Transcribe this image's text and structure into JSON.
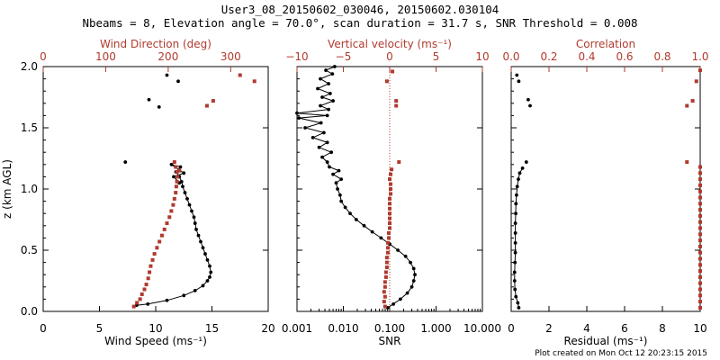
{
  "title_line1": "User3_08_20150602_030046, 20150602.030104",
  "title_line2": "Nbeams = 8, Elevation angle = 70.0°, scan duration = 31.7 s, SNR Threshold = 0.008",
  "footer": "Plot created on Mon Oct 12 20:23:15 2015",
  "colors": {
    "primary": "#000000",
    "secondary": "#b03a2e"
  },
  "chart_data": [
    {
      "type": "scatter",
      "panel": "wind",
      "ylabel": "z (km AGL)",
      "ylim": [
        0,
        2
      ],
      "y_ticks": [
        "0.0",
        "0.5",
        "1.0",
        "1.5",
        "2.0"
      ],
      "xlabel": "Wind Speed (ms⁻¹)",
      "xlim": [
        0,
        20
      ],
      "x_ticks": [
        "0",
        "5",
        "10",
        "15",
        "20"
      ],
      "top_xlabel": "Wind Direction (deg)",
      "top_xlim": [
        0,
        360
      ],
      "top_x_ticks": [
        "0",
        "100",
        "200",
        "300"
      ],
      "series": [
        {
          "name": "Wind Speed (ms⁻¹)",
          "axis": "bottom",
          "color": "#000000",
          "line": true,
          "points": [
            [
              8.3,
              0.05
            ],
            [
              9.3,
              0.06
            ],
            [
              11.0,
              0.09
            ],
            [
              12.5,
              0.13
            ],
            [
              13.5,
              0.17
            ],
            [
              14.2,
              0.21
            ],
            [
              14.6,
              0.25
            ],
            [
              14.8,
              0.28
            ],
            [
              14.9,
              0.32
            ],
            [
              14.8,
              0.37
            ],
            [
              14.6,
              0.42
            ],
            [
              14.4,
              0.47
            ],
            [
              14.2,
              0.52
            ],
            [
              14.0,
              0.57
            ],
            [
              13.8,
              0.62
            ],
            [
              13.6,
              0.67
            ],
            [
              13.5,
              0.72
            ],
            [
              13.4,
              0.77
            ],
            [
              13.2,
              0.82
            ],
            [
              13.0,
              0.87
            ],
            [
              12.8,
              0.92
            ],
            [
              12.6,
              0.97
            ],
            [
              12.4,
              1.02
            ],
            [
              12.3,
              1.06
            ],
            [
              12.1,
              1.1
            ],
            [
              11.8,
              1.14
            ],
            [
              12.2,
              1.18
            ],
            [
              11.4,
              1.2
            ],
            [
              12.5,
              1.13
            ],
            [
              11.6,
              1.1
            ],
            [
              12.1,
              1.05
            ]
          ]
        },
        {
          "name": "Wind Speed outliers",
          "axis": "bottom",
          "color": "#000000",
          "line": false,
          "points": [
            [
              11.0,
              1.93
            ],
            [
              12.0,
              1.88
            ],
            [
              9.4,
              1.73
            ],
            [
              10.3,
              1.67
            ],
            [
              7.3,
              1.22
            ]
          ]
        },
        {
          "name": "Wind Direction (deg)",
          "axis": "top",
          "color": "#b03a2e",
          "line": false,
          "points": [
            [
              145,
              0.04
            ],
            [
              150,
              0.07
            ],
            [
              155,
              0.1
            ],
            [
              158,
              0.14
            ],
            [
              162,
              0.18
            ],
            [
              165,
              0.22
            ],
            [
              168,
              0.27
            ],
            [
              170,
              0.32
            ],
            [
              172,
              0.37
            ],
            [
              175,
              0.42
            ],
            [
              178,
              0.47
            ],
            [
              182,
              0.52
            ],
            [
              186,
              0.57
            ],
            [
              190,
              0.62
            ],
            [
              194,
              0.67
            ],
            [
              198,
              0.72
            ],
            [
              202,
              0.77
            ],
            [
              205,
              0.82
            ],
            [
              208,
              0.87
            ],
            [
              210,
              0.92
            ],
            [
              212,
              0.97
            ],
            [
              213,
              1.02
            ],
            [
              214,
              1.06
            ],
            [
              215,
              1.1
            ],
            [
              214,
              1.14
            ],
            [
              212,
              1.18
            ],
            [
              218,
              1.15
            ],
            [
              210,
              1.22
            ],
            [
              262,
              1.68
            ],
            [
              272,
              1.72
            ],
            [
              315,
              1.93
            ],
            [
              338,
              1.88
            ]
          ]
        }
      ]
    },
    {
      "type": "scatter",
      "panel": "vertical",
      "xlabel": "SNR",
      "xscale": "log",
      "xlim": [
        0.001,
        10
      ],
      "x_ticks": [
        "0.001",
        "0.010",
        "0.100",
        "1.000",
        "10.000"
      ],
      "top_xlabel": "Vertical velocity (ms⁻¹)",
      "top_xlim": [
        -10,
        10
      ],
      "top_x_ticks": [
        "−10",
        "−5",
        "0",
        "5",
        "10"
      ],
      "zero_line": true,
      "series": [
        {
          "name": "SNR",
          "axis": "bottom",
          "color": "#000000",
          "line": true,
          "points": [
            [
              0.09,
              0.03
            ],
            [
              0.12,
              0.06
            ],
            [
              0.17,
              0.1
            ],
            [
              0.24,
              0.15
            ],
            [
              0.3,
              0.2
            ],
            [
              0.33,
              0.25
            ],
            [
              0.35,
              0.3
            ],
            [
              0.33,
              0.35
            ],
            [
              0.28,
              0.4
            ],
            [
              0.22,
              0.45
            ],
            [
              0.15,
              0.5
            ],
            [
              0.1,
              0.55
            ],
            [
              0.065,
              0.6
            ],
            [
              0.042,
              0.65
            ],
            [
              0.028,
              0.7
            ],
            [
              0.019,
              0.75
            ],
            [
              0.014,
              0.8
            ],
            [
              0.011,
              0.85
            ],
            [
              0.009,
              0.9
            ],
            [
              0.0085,
              0.95
            ],
            [
              0.0075,
              1.0
            ],
            [
              0.007,
              1.05
            ],
            [
              0.009,
              1.08
            ],
            [
              0.006,
              1.12
            ],
            [
              0.008,
              1.15
            ],
            [
              0.005,
              1.18
            ],
            [
              0.0045,
              1.22
            ],
            [
              0.0035,
              1.26
            ],
            [
              0.0055,
              1.3
            ],
            [
              0.003,
              1.34
            ],
            [
              0.0045,
              1.38
            ],
            [
              0.0022,
              1.42
            ],
            [
              0.0038,
              1.46
            ],
            [
              0.0015,
              1.5
            ],
            [
              0.0033,
              1.54
            ],
            [
              0.0011,
              1.58
            ],
            [
              0.0045,
              1.6
            ],
            [
              0.001,
              1.62
            ],
            [
              0.0048,
              1.65
            ],
            [
              0.0032,
              1.68
            ],
            [
              0.006,
              1.72
            ],
            [
              0.0035,
              1.75
            ],
            [
              0.0052,
              1.78
            ],
            [
              0.0028,
              1.82
            ],
            [
              0.0048,
              1.86
            ],
            [
              0.0032,
              1.9
            ],
            [
              0.0058,
              1.94
            ],
            [
              0.0042,
              1.97
            ],
            [
              0.0065,
              2.0
            ]
          ]
        },
        {
          "name": "Vertical velocity (ms⁻¹)",
          "axis": "top",
          "color": "#b03a2e",
          "line": false,
          "points": [
            [
              -0.5,
              0.04
            ],
            [
              -0.6,
              0.08
            ],
            [
              -0.5,
              0.12
            ],
            [
              -0.6,
              0.16
            ],
            [
              -0.5,
              0.2
            ],
            [
              -0.5,
              0.24
            ],
            [
              -0.4,
              0.28
            ],
            [
              -0.4,
              0.32
            ],
            [
              -0.3,
              0.36
            ],
            [
              -0.3,
              0.4
            ],
            [
              -0.3,
              0.44
            ],
            [
              -0.2,
              0.48
            ],
            [
              -0.2,
              0.52
            ],
            [
              -0.2,
              0.56
            ],
            [
              -0.1,
              0.6
            ],
            [
              -0.1,
              0.64
            ],
            [
              0.0,
              0.68
            ],
            [
              0.0,
              0.72
            ],
            [
              0.0,
              0.76
            ],
            [
              0.0,
              0.8
            ],
            [
              0.0,
              0.84
            ],
            [
              0.0,
              0.88
            ],
            [
              0.0,
              0.92
            ],
            [
              0.1,
              0.96
            ],
            [
              0.1,
              1.0
            ],
            [
              0.1,
              1.04
            ],
            [
              0.0,
              1.08
            ],
            [
              0.1,
              1.12
            ],
            [
              0.2,
              1.16
            ],
            [
              1.0,
              1.22
            ],
            [
              0.7,
              1.68
            ],
            [
              0.7,
              1.72
            ],
            [
              -0.3,
              1.88
            ],
            [
              0.3,
              1.96
            ]
          ]
        }
      ]
    },
    {
      "type": "scatter",
      "panel": "residual",
      "xlabel": "Residual (ms⁻¹)",
      "xlim": [
        0,
        10
      ],
      "x_ticks": [
        "0",
        "2",
        "4",
        "6",
        "8",
        "10"
      ],
      "top_xlabel": "Correlation",
      "top_xlim": [
        0,
        1
      ],
      "top_x_ticks": [
        "0.0",
        "0.2",
        "0.4",
        "0.6",
        "0.8",
        "1.0"
      ],
      "series": [
        {
          "name": "Residual (ms⁻¹)",
          "axis": "bottom",
          "color": "#000000",
          "line": true,
          "points": [
            [
              0.4,
              0.03
            ],
            [
              0.35,
              0.07
            ],
            [
              0.25,
              0.12
            ],
            [
              0.2,
              0.18
            ],
            [
              0.18,
              0.25
            ],
            [
              0.18,
              0.32
            ],
            [
              0.2,
              0.4
            ],
            [
              0.22,
              0.48
            ],
            [
              0.22,
              0.56
            ],
            [
              0.22,
              0.64
            ],
            [
              0.22,
              0.72
            ],
            [
              0.24,
              0.8
            ],
            [
              0.25,
              0.88
            ],
            [
              0.28,
              0.95
            ],
            [
              0.32,
              1.02
            ],
            [
              0.38,
              1.08
            ],
            [
              0.45,
              1.13
            ],
            [
              0.6,
              1.17
            ]
          ]
        },
        {
          "name": "Residual outliers",
          "axis": "bottom",
          "color": "#000000",
          "line": false,
          "points": [
            [
              0.8,
              1.22
            ],
            [
              1.0,
              1.68
            ],
            [
              0.9,
              1.73
            ],
            [
              0.4,
              1.88
            ],
            [
              0.3,
              1.93
            ]
          ]
        },
        {
          "name": "Correlation",
          "axis": "top",
          "color": "#b03a2e",
          "line": false,
          "points": [
            [
              1.0,
              0.03
            ],
            [
              1.0,
              0.08
            ],
            [
              1.0,
              0.13
            ],
            [
              1.0,
              0.18
            ],
            [
              1.0,
              0.23
            ],
            [
              1.0,
              0.28
            ],
            [
              1.0,
              0.33
            ],
            [
              1.0,
              0.38
            ],
            [
              1.0,
              0.43
            ],
            [
              1.0,
              0.48
            ],
            [
              1.0,
              0.53
            ],
            [
              1.0,
              0.58
            ],
            [
              1.0,
              0.63
            ],
            [
              1.0,
              0.68
            ],
            [
              1.0,
              0.73
            ],
            [
              1.0,
              0.78
            ],
            [
              1.0,
              0.83
            ],
            [
              1.0,
              0.88
            ],
            [
              1.0,
              0.93
            ],
            [
              1.0,
              0.98
            ],
            [
              1.0,
              1.03
            ],
            [
              1.0,
              1.08
            ],
            [
              1.0,
              1.13
            ],
            [
              1.0,
              1.18
            ],
            [
              0.93,
              1.22
            ],
            [
              0.96,
              1.72
            ],
            [
              0.93,
              1.68
            ],
            [
              0.98,
              1.88
            ],
            [
              1.0,
              1.97
            ]
          ]
        }
      ]
    }
  ]
}
